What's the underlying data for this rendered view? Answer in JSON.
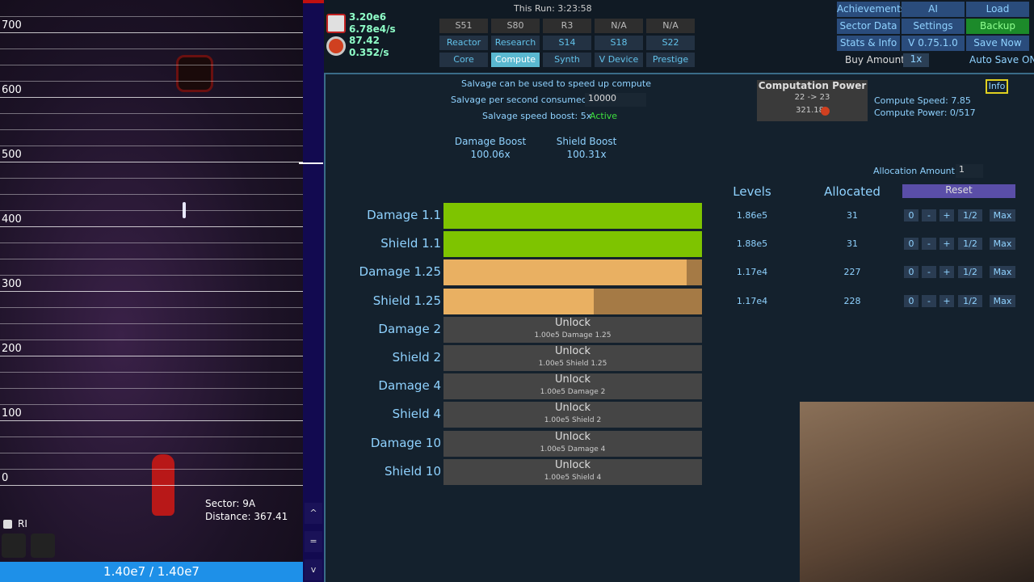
{
  "game_view": {
    "y_labels": [
      "700",
      "600",
      "500",
      "400",
      "300",
      "200",
      "100",
      "0"
    ],
    "sector": "Sector: 9A",
    "distance": "Distance: 367.41",
    "checkbox_label": "RI",
    "health": "1.40e7 / 1.40e7"
  },
  "side_buttons": [
    "^",
    "=",
    "v"
  ],
  "resources": [
    "3.20e6",
    "6.78e4/s",
    "87.42",
    "0.352/s"
  ],
  "run_time": "This Run: 3:23:58",
  "tabs": [
    [
      "S51",
      "S80",
      "R3",
      "N/A",
      "N/A"
    ],
    [
      "Reactor",
      "Research",
      "S14",
      "S18",
      "S22"
    ],
    [
      "Core",
      "Compute",
      "Synth",
      "V Device",
      "Prestige"
    ]
  ],
  "active_tab": "Compute",
  "menu": [
    [
      "Achievements",
      "AI",
      "Load"
    ],
    [
      "Sector Data",
      "Settings",
      "Backup"
    ],
    [
      "Stats & Info",
      "V 0.75.1.0",
      "Save Now"
    ]
  ],
  "highlighted_menu": "Backup",
  "buy_amount_label": "Buy Amount:",
  "buy_amount": "1x",
  "auto_save": "Auto Save ON",
  "salvage": {
    "info": "Salvage can be used to speed up compute",
    "per_second_label": "Salvage per second consumed:",
    "per_second_input": "10000",
    "boost_label": "Salvage speed boost: 5x",
    "boost_status": "Active"
  },
  "boosts": [
    {
      "name": "Damage Boost",
      "value": "100.06x"
    },
    {
      "name": "Shield Boost",
      "value": "100.31x"
    }
  ],
  "computation_power": {
    "title": "Computation Power",
    "range": "22 -> 23",
    "cost": "321.18"
  },
  "info_button": "Info",
  "compute_speed": "Compute Speed: 7.85",
  "compute_power": "Compute Power: 0/517",
  "allocation": {
    "label": "Allocation Amount",
    "value": "1"
  },
  "columns": {
    "levels": "Levels",
    "allocated": "Allocated"
  },
  "reset": "Reset",
  "row_buttons": [
    "0",
    "-",
    "+",
    "1/2",
    "Max"
  ],
  "rows": [
    {
      "name": "Damage 1.1",
      "progress": 1,
      "color": "#7ec400",
      "levels": "1.86e5",
      "allocated": "31"
    },
    {
      "name": "Shield 1.1",
      "progress": 1,
      "color": "#7ec400",
      "levels": "1.88e5",
      "allocated": "31"
    },
    {
      "name": "Damage 1.25",
      "progress": 0.94,
      "color": "#e9b062",
      "levels": "1.17e4",
      "allocated": "227"
    },
    {
      "name": "Shield 1.25",
      "progress": 0.58,
      "color": "#e9b062",
      "levels": "1.17e4",
      "allocated": "228"
    },
    {
      "name": "Damage 2",
      "unlock": "Unlock",
      "requirement": "1.00e5 Damage 1.25"
    },
    {
      "name": "Shield 2",
      "unlock": "Unlock",
      "requirement": "1.00e5 Shield 1.25"
    },
    {
      "name": "Damage 4",
      "unlock": "Unlock",
      "requirement": "1.00e5 Damage 2"
    },
    {
      "name": "Shield 4",
      "unlock": "Unlock",
      "requirement": "1.00e5 Shield 2"
    },
    {
      "name": "Damage 10",
      "unlock": "Unlock",
      "requirement": "1.00e5 Damage 4"
    },
    {
      "name": "Shield 10",
      "unlock": "Unlock",
      "requirement": "1.00e5 Shield 4"
    }
  ]
}
